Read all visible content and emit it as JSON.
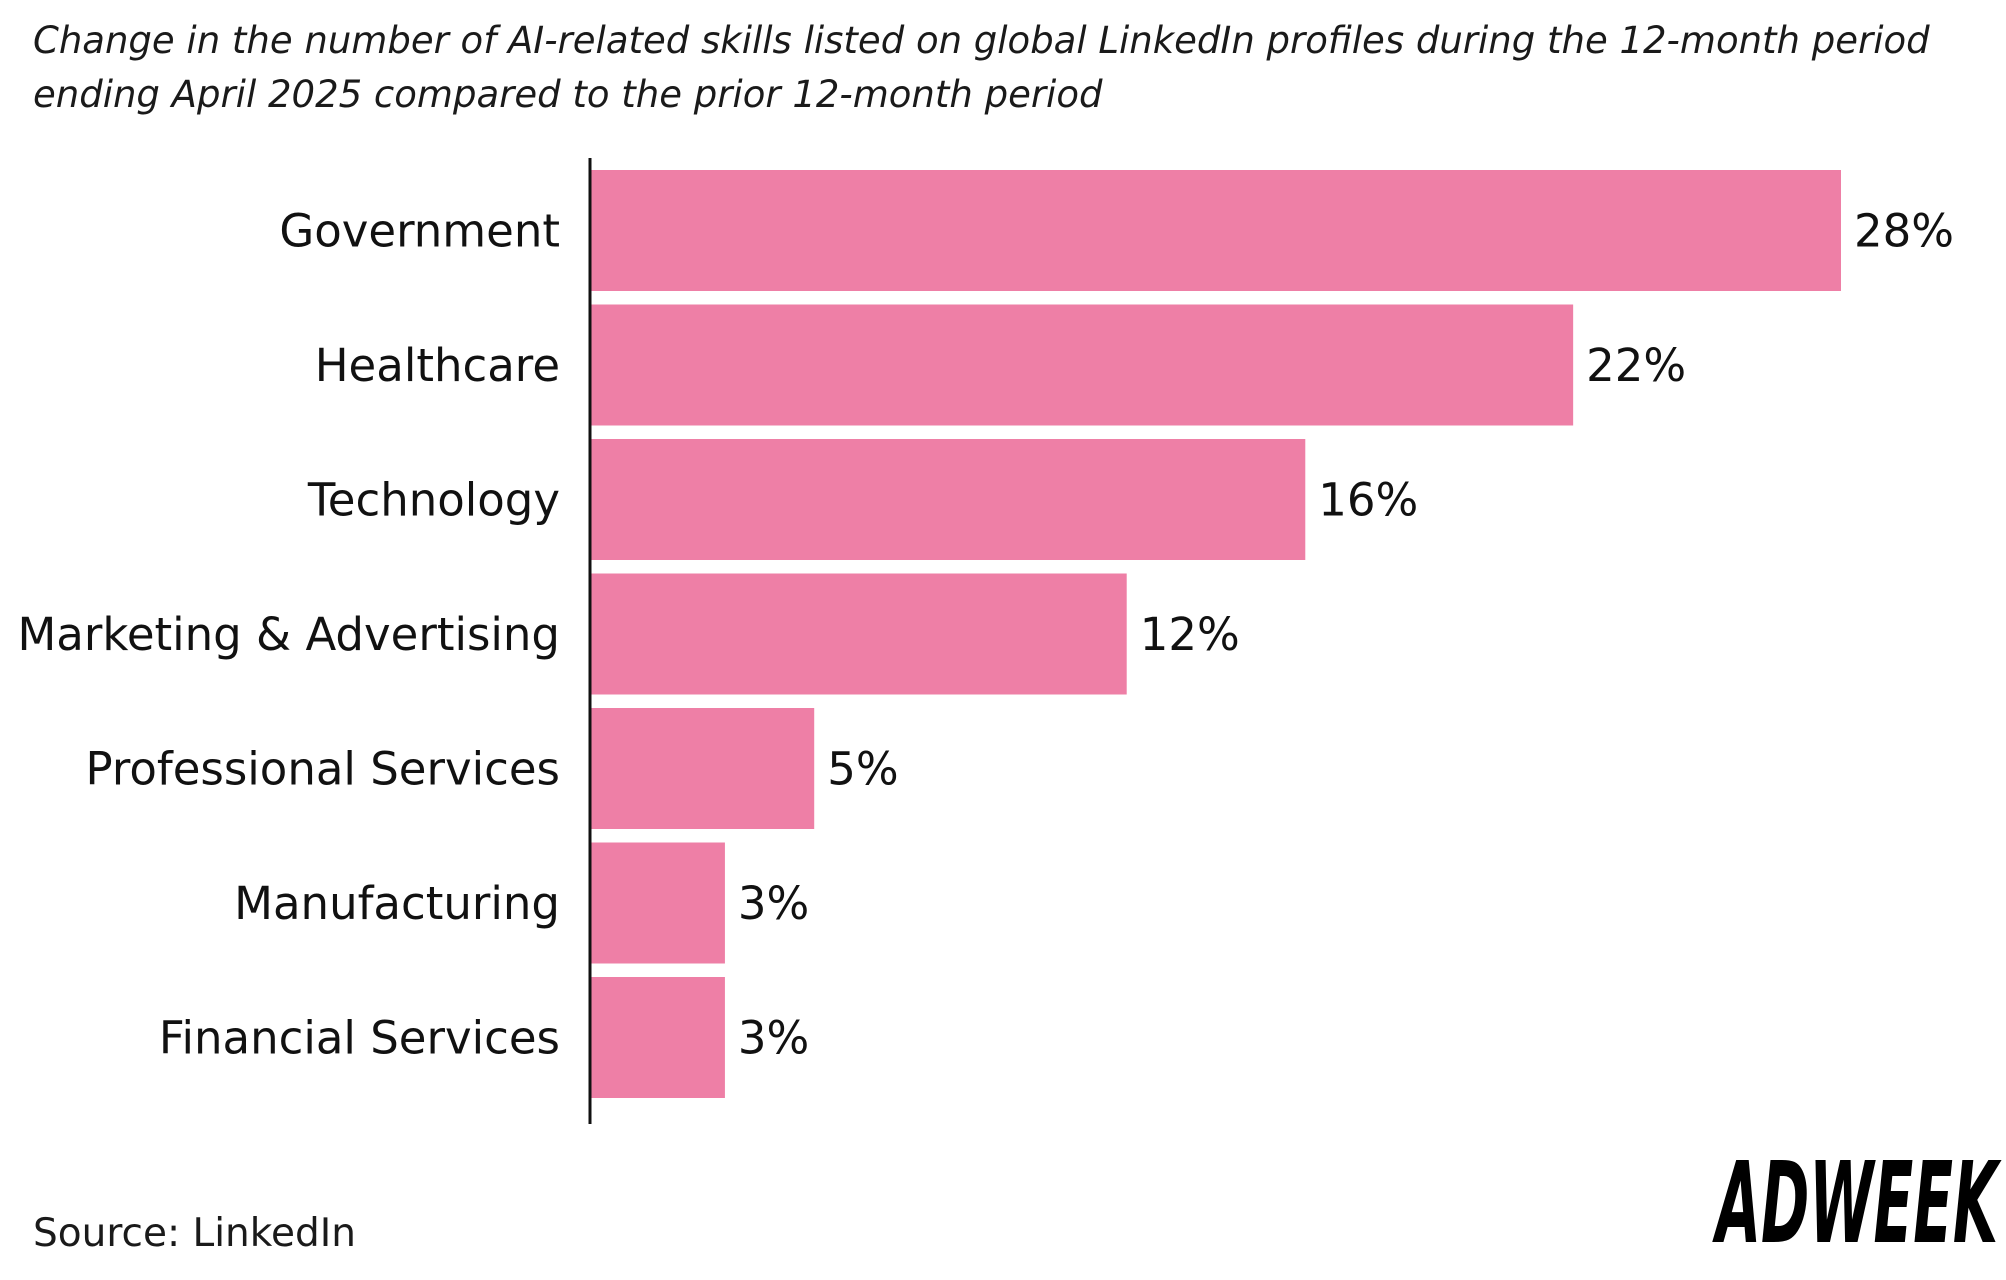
{
  "subtitle": "Change in the number of AI-related skills listed on global LinkedIn profiles during the 12-month period ending April 2025 compared to the prior 12-month period",
  "source": "Source: LinkedIn",
  "logo_text": "ADWEEK",
  "colors": {
    "bar": "#ee7fa6",
    "text": "#111111",
    "axis": "#111111"
  },
  "chart_data": {
    "type": "bar",
    "orientation": "horizontal",
    "categories": [
      "Government",
      "Healthcare",
      "Technology",
      "Marketing & Advertising",
      "Professional Services",
      "Manufacturing",
      "Financial Services"
    ],
    "values": [
      28,
      22,
      16,
      12,
      5,
      3,
      3
    ],
    "value_labels": [
      "28%",
      "22%",
      "16%",
      "12%",
      "5%",
      "3%",
      "3%"
    ],
    "xlim": [
      0,
      28
    ],
    "grid": false,
    "legend": "none"
  }
}
